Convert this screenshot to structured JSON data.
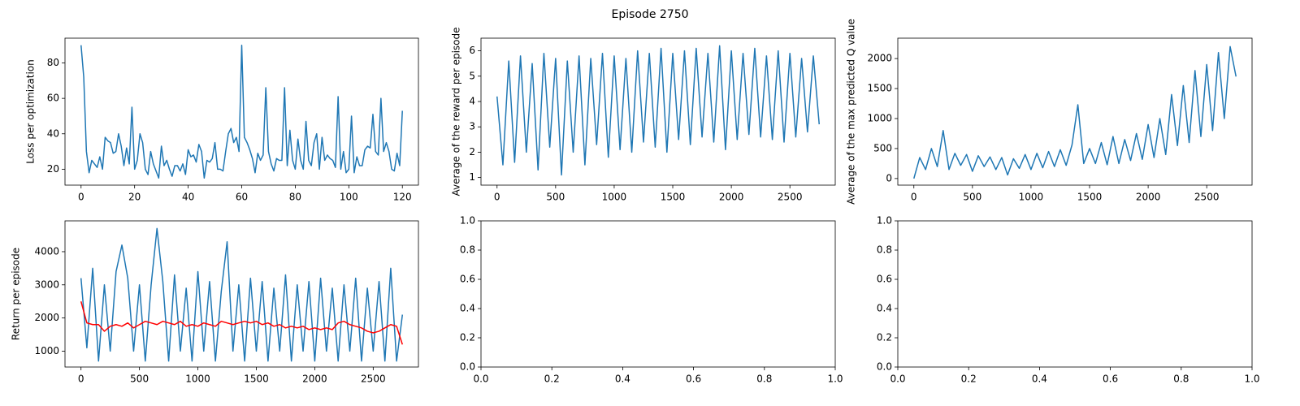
{
  "title": "Episode 2750",
  "chart_data": [
    {
      "type": "line",
      "ylabel": "Loss per optimization",
      "x": [
        0,
        1,
        2,
        3,
        4,
        5,
        6,
        7,
        8,
        9,
        10,
        11,
        12,
        13,
        14,
        15,
        16,
        17,
        18,
        19,
        20,
        21,
        22,
        23,
        24,
        25,
        26,
        27,
        28,
        29,
        30,
        31,
        32,
        33,
        34,
        35,
        36,
        37,
        38,
        39,
        40,
        41,
        42,
        43,
        44,
        45,
        46,
        47,
        48,
        49,
        50,
        51,
        52,
        53,
        54,
        55,
        56,
        57,
        58,
        59,
        60,
        61,
        62,
        63,
        64,
        65,
        66,
        67,
        68,
        69,
        70,
        71,
        72,
        73,
        74,
        75,
        76,
        77,
        78,
        79,
        80,
        81,
        82,
        83,
        84,
        85,
        86,
        87,
        88,
        89,
        90,
        91,
        92,
        93,
        94,
        95,
        96,
        97,
        98,
        99,
        100,
        101,
        102,
        103,
        104,
        105,
        106,
        107,
        108,
        109,
        110,
        111,
        112,
        113,
        114,
        115,
        116,
        117,
        118,
        119,
        120
      ],
      "series": [
        {
          "color": "#1f77b4",
          "values": [
            90,
            72,
            30,
            18,
            25,
            23,
            21,
            27,
            20,
            38,
            36,
            35,
            29,
            30,
            40,
            33,
            22,
            32,
            23,
            55,
            20,
            25,
            40,
            35,
            20,
            17,
            30,
            23,
            19,
            15,
            33,
            22,
            25,
            20,
            16,
            22,
            22,
            19,
            23,
            17,
            31,
            27,
            28,
            24,
            34,
            30,
            15,
            25,
            24,
            26,
            35,
            20,
            20,
            19,
            30,
            40,
            43,
            35,
            38,
            30,
            90,
            38,
            35,
            31,
            26,
            18,
            29,
            25,
            28,
            66,
            30,
            23,
            19,
            26,
            25,
            25,
            66,
            22,
            42,
            25,
            20,
            37,
            25,
            20,
            47,
            25,
            22,
            35,
            40,
            20,
            38,
            25,
            28,
            26,
            25,
            21,
            61,
            20,
            30,
            18,
            20,
            50,
            18,
            27,
            22,
            22,
            31,
            33,
            32,
            51,
            30,
            28,
            60,
            30,
            35,
            30,
            20,
            19,
            29,
            22,
            53
          ]
        }
      ],
      "xlim": [
        -6,
        126
      ],
      "xticks": [
        0,
        20,
        40,
        60,
        80,
        100,
        120
      ],
      "ylim": [
        11,
        94
      ],
      "yticks": [
        20,
        40,
        60,
        80
      ]
    },
    {
      "type": "line",
      "ylabel": "Average of the reward per episode",
      "x": [
        0,
        50,
        100,
        150,
        200,
        250,
        300,
        350,
        400,
        450,
        500,
        550,
        600,
        650,
        700,
        750,
        800,
        850,
        900,
        950,
        1000,
        1050,
        1100,
        1150,
        1200,
        1250,
        1300,
        1350,
        1400,
        1450,
        1500,
        1550,
        1600,
        1650,
        1700,
        1750,
        1800,
        1850,
        1900,
        1950,
        2000,
        2050,
        2100,
        2150,
        2200,
        2250,
        2300,
        2350,
        2400,
        2450,
        2500,
        2550,
        2600,
        2650,
        2700,
        2750
      ],
      "series": [
        {
          "color": "#1f77b4",
          "values": [
            4.2,
            1.5,
            5.6,
            1.6,
            5.8,
            2.0,
            5.5,
            1.3,
            5.9,
            2.2,
            5.7,
            1.1,
            5.6,
            2.0,
            5.8,
            1.5,
            5.7,
            2.3,
            5.9,
            1.8,
            5.8,
            2.1,
            5.7,
            2.0,
            6.0,
            2.4,
            5.9,
            2.2,
            6.1,
            2.0,
            5.9,
            2.5,
            6.0,
            2.3,
            6.1,
            2.6,
            5.9,
            2.4,
            6.2,
            2.1,
            6.0,
            2.5,
            5.9,
            2.7,
            6.1,
            2.6,
            5.8,
            2.5,
            6.0,
            2.4,
            5.9,
            2.6,
            5.7,
            2.8,
            5.8,
            3.1
          ]
        }
      ],
      "xlim": [
        -137,
        2887
      ],
      "xticks": [
        0,
        500,
        1000,
        1500,
        2000,
        2500
      ],
      "ylim": [
        0.7,
        6.5
      ],
      "yticks": [
        1,
        2,
        3,
        4,
        5,
        6
      ]
    },
    {
      "type": "line",
      "ylabel": "Average of the max predicted Q value",
      "x": [
        0,
        50,
        100,
        150,
        200,
        250,
        300,
        350,
        400,
        450,
        500,
        550,
        600,
        650,
        700,
        750,
        800,
        850,
        900,
        950,
        1000,
        1050,
        1100,
        1150,
        1200,
        1250,
        1300,
        1350,
        1400,
        1450,
        1500,
        1550,
        1600,
        1650,
        1700,
        1750,
        1800,
        1850,
        1900,
        1950,
        2000,
        2050,
        2100,
        2150,
        2200,
        2250,
        2300,
        2350,
        2400,
        2450,
        2500,
        2550,
        2600,
        2650,
        2700,
        2750
      ],
      "series": [
        {
          "color": "#1f77b4",
          "values": [
            0,
            350,
            150,
            500,
            200,
            800,
            150,
            420,
            220,
            400,
            120,
            380,
            200,
            360,
            150,
            350,
            60,
            330,
            170,
            400,
            150,
            420,
            180,
            450,
            200,
            480,
            220,
            560,
            1230,
            250,
            500,
            250,
            600,
            230,
            700,
            250,
            650,
            300,
            750,
            320,
            900,
            350,
            1000,
            400,
            1400,
            550,
            1550,
            600,
            1800,
            700,
            1900,
            800,
            2100,
            1000,
            2200,
            1700
          ]
        }
      ],
      "xlim": [
        -137,
        2887
      ],
      "xticks": [
        0,
        500,
        1000,
        1500,
        2000,
        2500
      ],
      "ylim": [
        -110,
        2340
      ],
      "yticks": [
        0,
        500,
        1000,
        1500,
        2000
      ]
    },
    {
      "type": "line",
      "ylabel": "Return per episode",
      "x": [
        0,
        50,
        100,
        150,
        200,
        250,
        300,
        350,
        400,
        450,
        500,
        550,
        600,
        650,
        700,
        750,
        800,
        850,
        900,
        950,
        1000,
        1050,
        1100,
        1150,
        1200,
        1250,
        1300,
        1350,
        1400,
        1450,
        1500,
        1550,
        1600,
        1650,
        1700,
        1750,
        1800,
        1850,
        1900,
        1950,
        2000,
        2050,
        2100,
        2150,
        2200,
        2250,
        2300,
        2350,
        2400,
        2450,
        2500,
        2550,
        2600,
        2650,
        2700,
        2750
      ],
      "series": [
        {
          "color": "#1f77b4",
          "values": [
            3200,
            1100,
            3500,
            700,
            3000,
            1000,
            3400,
            4200,
            3200,
            1000,
            3000,
            700,
            3000,
            4700,
            3100,
            700,
            3300,
            1000,
            2900,
            700,
            3400,
            1000,
            3100,
            700,
            2800,
            4300,
            1000,
            3000,
            700,
            3200,
            1000,
            3100,
            700,
            2900,
            1000,
            3300,
            700,
            3000,
            1000,
            3100,
            700,
            3200,
            1000,
            2900,
            700,
            3000,
            1000,
            3200,
            700,
            2900,
            1000,
            3100,
            700,
            3500,
            700,
            2100
          ]
        },
        {
          "color": "#ff0000",
          "values": [
            2500,
            1850,
            1800,
            1800,
            1600,
            1750,
            1800,
            1750,
            1850,
            1700,
            1800,
            1900,
            1850,
            1800,
            1900,
            1850,
            1800,
            1900,
            1750,
            1800,
            1750,
            1850,
            1800,
            1750,
            1900,
            1850,
            1800,
            1850,
            1900,
            1850,
            1900,
            1800,
            1850,
            1750,
            1800,
            1700,
            1750,
            1700,
            1750,
            1650,
            1700,
            1650,
            1700,
            1650,
            1850,
            1900,
            1800,
            1750,
            1700,
            1600,
            1550,
            1600,
            1700,
            1800,
            1750,
            1200
          ]
        }
      ],
      "xlim": [
        -137,
        2887
      ],
      "xticks": [
        0,
        500,
        1000,
        1500,
        2000,
        2500
      ],
      "ylim": [
        520,
        4930
      ],
      "yticks": [
        1000,
        2000,
        3000,
        4000
      ]
    },
    {
      "type": "line",
      "series": [],
      "xlim": [
        0,
        1
      ],
      "ylim": [
        0,
        1
      ],
      "xticks": [
        {
          "value": 0,
          "label": "0.0"
        },
        {
          "value": 0.2,
          "label": "0.2"
        },
        {
          "value": 0.4,
          "label": "0.4"
        },
        {
          "value": 0.6,
          "label": "0.6"
        },
        {
          "value": 0.8,
          "label": "0.8"
        },
        {
          "value": 1,
          "label": "1.0"
        }
      ],
      "yticks": [
        {
          "value": 0,
          "label": "0.0"
        },
        {
          "value": 0.2,
          "label": "0.2"
        },
        {
          "value": 0.4,
          "label": "0.4"
        },
        {
          "value": 0.6,
          "label": "0.6"
        },
        {
          "value": 0.8,
          "label": "0.8"
        },
        {
          "value": 1,
          "label": "1.0"
        }
      ]
    },
    {
      "type": "line",
      "series": [],
      "xlim": [
        0,
        1
      ],
      "ylim": [
        0,
        1
      ],
      "xticks": [
        {
          "value": 0,
          "label": "0.0"
        },
        {
          "value": 0.2,
          "label": "0.2"
        },
        {
          "value": 0.4,
          "label": "0.4"
        },
        {
          "value": 0.6,
          "label": "0.6"
        },
        {
          "value": 0.8,
          "label": "0.8"
        },
        {
          "value": 1,
          "label": "1.0"
        }
      ],
      "yticks": [
        {
          "value": 0,
          "label": "0.0"
        },
        {
          "value": 0.2,
          "label": "0.2"
        },
        {
          "value": 0.4,
          "label": "0.4"
        },
        {
          "value": 0.6,
          "label": "0.6"
        },
        {
          "value": 0.8,
          "label": "0.8"
        },
        {
          "value": 1,
          "label": "1.0"
        }
      ]
    }
  ]
}
